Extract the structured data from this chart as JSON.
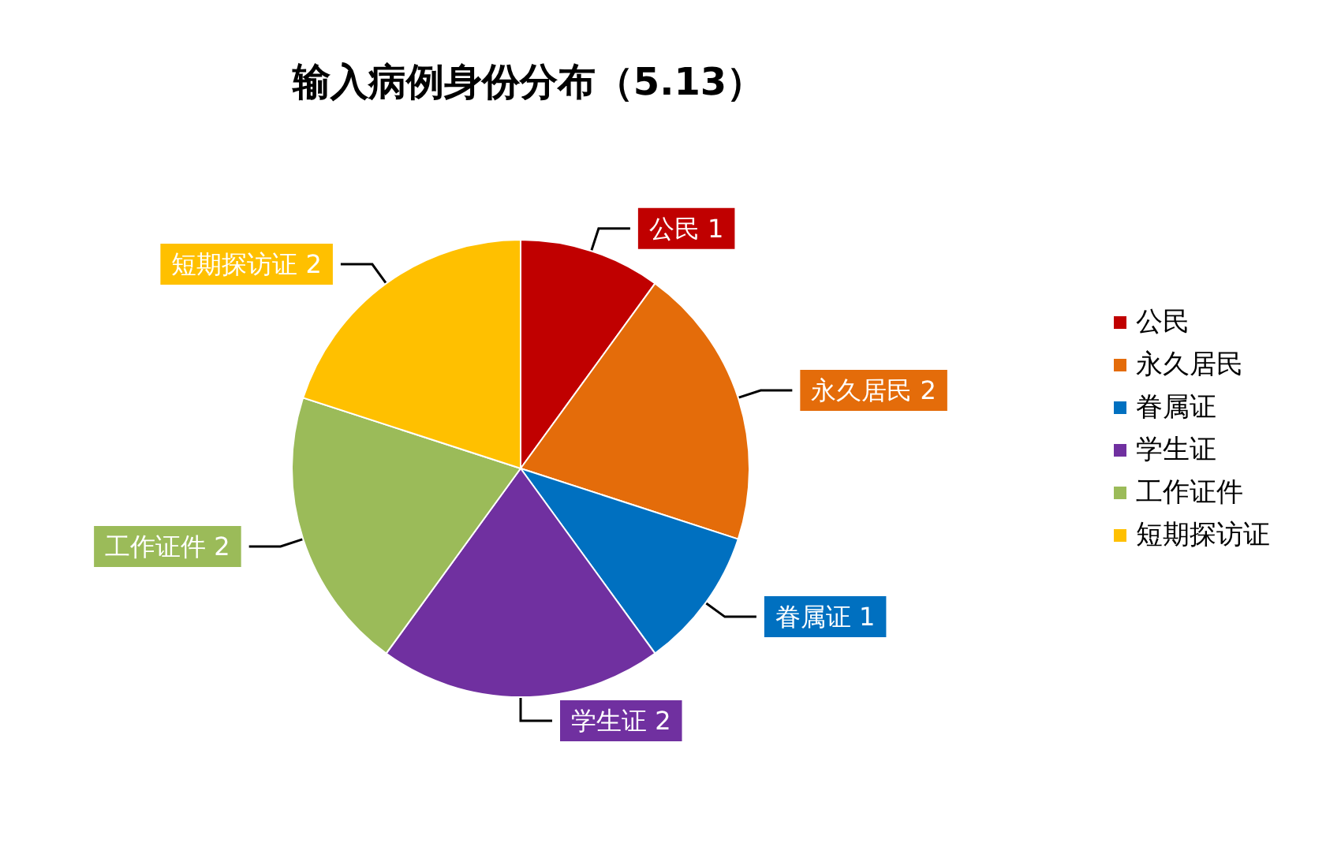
{
  "chart_data": {
    "type": "pie",
    "title": "输入病例身份分布（5.13）",
    "categories": [
      "公民",
      "永久居民",
      "眷属证",
      "学生证",
      "工作证件",
      "短期探访证"
    ],
    "values": [
      1,
      2,
      1,
      2,
      2,
      2
    ],
    "colors": [
      "#c00000",
      "#e46c0a",
      "#0070c0",
      "#7030a0",
      "#9bbb59",
      "#ffc000"
    ],
    "data_labels": true,
    "legend": "right"
  }
}
